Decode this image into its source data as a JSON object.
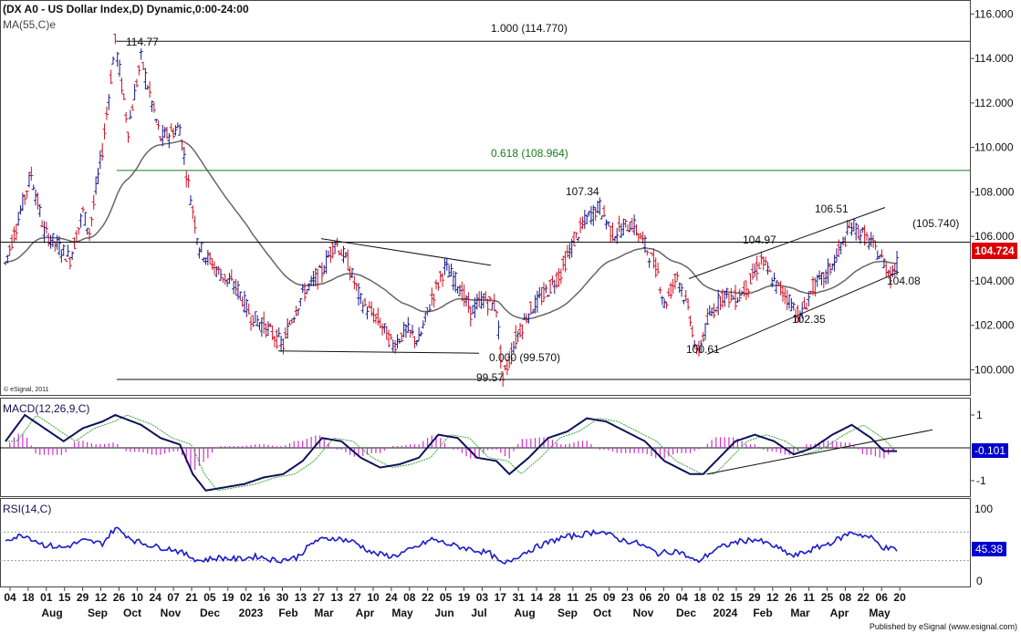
{
  "header": {
    "title": "(DX A0 - US Dollar Index,D) Dynamic,0:00-24:00",
    "ma_label": "MA(55,C)e",
    "copyright": "© eSignal, 2011",
    "published": "Published by eSignal (www.esignal.com)"
  },
  "colors": {
    "bullish_bar": "#1a1a8c",
    "bearish_bar": "#cc1122",
    "ma_line": "#666666",
    "fib_618_line": "#1a7a1a",
    "macd_line": "#10105a",
    "macd_signal": "#33aa33",
    "macd_histogram": "#cc33cc",
    "rsi_line": "#1a1acc",
    "price_box": "#dd0000",
    "indicator_box": "#0000cc"
  },
  "chart_data": [
    {
      "type": "line",
      "panel": "price",
      "y_ticks": [
        "100.000",
        "102.000",
        "104.000",
        "106.000",
        "108.000",
        "110.000",
        "112.000",
        "114.000",
        "116.000"
      ],
      "ylim": [
        99.2,
        116.3
      ],
      "x_ticks": [
        "04",
        "18",
        "01",
        "15",
        "29",
        "12",
        "26",
        "10",
        "24",
        "07",
        "21",
        "05",
        "19",
        "02",
        "16",
        "30",
        "13",
        "27",
        "13",
        "27",
        "10",
        "24",
        "08",
        "22",
        "05",
        "19",
        "03",
        "17",
        "31",
        "14",
        "28",
        "11",
        "25",
        "09",
        "23",
        "06",
        "20",
        "04",
        "18",
        "02",
        "15",
        "29",
        "12",
        "26",
        "11",
        "25",
        "08",
        "22",
        "06",
        "20"
      ],
      "x_month_labels": [
        "Aug",
        "Sep",
        "Oct",
        "Nov",
        "Dec",
        "2023",
        "Feb",
        "Mar",
        "Apr",
        "May",
        "Jun",
        "Jul",
        "Aug",
        "Sep",
        "Oct",
        "Nov",
        "Dec",
        "2024",
        "Feb",
        "Mar",
        "Apr",
        "May"
      ],
      "price_path": [
        [
          0,
          104.8
        ],
        [
          4,
          108.8
        ],
        [
          6,
          106.2
        ],
        [
          10,
          105.0
        ],
        [
          12,
          107.1
        ],
        [
          13,
          106.2
        ],
        [
          15,
          109.9
        ],
        [
          17,
          114.77
        ],
        [
          19,
          110.8
        ],
        [
          21,
          114.0
        ],
        [
          24,
          110.4
        ],
        [
          27,
          110.9
        ],
        [
          28,
          108.9
        ],
        [
          30,
          105.5
        ],
        [
          33,
          104.4
        ],
        [
          36,
          103.6
        ],
        [
          38,
          102.4
        ],
        [
          40,
          102.0
        ],
        [
          43,
          101.1
        ],
        [
          44,
          102.1
        ],
        [
          46,
          103.4
        ],
        [
          49,
          104.4
        ],
        [
          51,
          105.8
        ],
        [
          53,
          104.8
        ],
        [
          55,
          103.1
        ],
        [
          58,
          102.1
        ],
        [
          60,
          101.1
        ],
        [
          62,
          101.8
        ],
        [
          64,
          101.3
        ],
        [
          66,
          103.2
        ],
        [
          68,
          104.6
        ],
        [
          70,
          103.9
        ],
        [
          72,
          102.6
        ],
        [
          74,
          103.2
        ],
        [
          76,
          102.8
        ],
        [
          77,
          99.57
        ],
        [
          79,
          101.4
        ],
        [
          81,
          102.6
        ],
        [
          84,
          103.6
        ],
        [
          86,
          104.4
        ],
        [
          88,
          105.8
        ],
        [
          90,
          106.8
        ],
        [
          92,
          107.34
        ],
        [
          94,
          106.1
        ],
        [
          97,
          106.6
        ],
        [
          99,
          105.6
        ],
        [
          101,
          104.4
        ],
        [
          102,
          102.9
        ],
        [
          104,
          104.3
        ],
        [
          106,
          102.4
        ],
        [
          107,
          100.61
        ],
        [
          109,
          102.4
        ],
        [
          111,
          103.4
        ],
        [
          113,
          103.2
        ],
        [
          115,
          103.8
        ],
        [
          117,
          104.97
        ],
        [
          119,
          103.9
        ],
        [
          121,
          103.3
        ],
        [
          123,
          102.35
        ],
        [
          125,
          103.7
        ],
        [
          127,
          104.2
        ],
        [
          129,
          105.3
        ],
        [
          131,
          106.51
        ],
        [
          133,
          106.0
        ],
        [
          135,
          105.3
        ],
        [
          137,
          104.3
        ],
        [
          138,
          104.724
        ]
      ],
      "labels": [
        "114.77",
        "107.34",
        "104.97",
        "106.51",
        "99.57",
        "100.61",
        "102.35",
        "104.08"
      ],
      "fib_levels": [
        "1.000 (114.770)",
        "0.618 (108.964)",
        "0.000 (99.570)"
      ],
      "resistance_label": "(105.740)",
      "last_value": "104.724"
    },
    {
      "type": "line",
      "panel": "macd",
      "title": "MACD(12,26,9,C)",
      "y_ticks": [
        "1",
        "-1"
      ],
      "ylim": [
        -1.5,
        1.5
      ],
      "last_value": "-0.101",
      "macd_path": [
        [
          0,
          0.2
        ],
        [
          3,
          1.0
        ],
        [
          6,
          0.6
        ],
        [
          9,
          0.2
        ],
        [
          12,
          0.6
        ],
        [
          15,
          0.8
        ],
        [
          17,
          1.0
        ],
        [
          21,
          0.7
        ],
        [
          24,
          0.3
        ],
        [
          27,
          0.1
        ],
        [
          29,
          -0.8
        ],
        [
          31,
          -1.3
        ],
        [
          34,
          -1.2
        ],
        [
          37,
          -1.1
        ],
        [
          40,
          -0.9
        ],
        [
          43,
          -0.8
        ],
        [
          46,
          -0.4
        ],
        [
          49,
          0.3
        ],
        [
          52,
          0.2
        ],
        [
          55,
          -0.3
        ],
        [
          58,
          -0.6
        ],
        [
          61,
          -0.5
        ],
        [
          64,
          -0.3
        ],
        [
          67,
          0.4
        ],
        [
          70,
          0.3
        ],
        [
          73,
          -0.3
        ],
        [
          76,
          -0.4
        ],
        [
          78,
          -0.8
        ],
        [
          81,
          -0.3
        ],
        [
          84,
          0.3
        ],
        [
          87,
          0.5
        ],
        [
          90,
          0.9
        ],
        [
          93,
          0.8
        ],
        [
          96,
          0.5
        ],
        [
          99,
          0.2
        ],
        [
          102,
          -0.4
        ],
        [
          104,
          -0.6
        ],
        [
          106,
          -0.8
        ],
        [
          108,
          -0.8
        ],
        [
          110,
          -0.4
        ],
        [
          113,
          0.2
        ],
        [
          116,
          0.4
        ],
        [
          119,
          0.2
        ],
        [
          122,
          -0.2
        ],
        [
          125,
          0.0
        ],
        [
          128,
          0.4
        ],
        [
          131,
          0.7
        ],
        [
          134,
          0.3
        ],
        [
          136,
          -0.1
        ],
        [
          138,
          -0.101
        ]
      ]
    },
    {
      "type": "line",
      "panel": "rsi",
      "title": "RSI(14,C)",
      "y_ticks": [
        "100",
        "0"
      ],
      "ylim": [
        0,
        100
      ],
      "last_value": "45.38",
      "rsi_path": [
        [
          0,
          60
        ],
        [
          3,
          66
        ],
        [
          6,
          52
        ],
        [
          9,
          48
        ],
        [
          12,
          58
        ],
        [
          15,
          54
        ],
        [
          17,
          76
        ],
        [
          20,
          58
        ],
        [
          23,
          50
        ],
        [
          26,
          46
        ],
        [
          28,
          38
        ],
        [
          30,
          30
        ],
        [
          33,
          34
        ],
        [
          36,
          32
        ],
        [
          39,
          36
        ],
        [
          42,
          30
        ],
        [
          45,
          34
        ],
        [
          48,
          58
        ],
        [
          51,
          62
        ],
        [
          54,
          56
        ],
        [
          57,
          40
        ],
        [
          60,
          36
        ],
        [
          63,
          46
        ],
        [
          66,
          60
        ],
        [
          69,
          52
        ],
        [
          72,
          46
        ],
        [
          75,
          40
        ],
        [
          77,
          24
        ],
        [
          80,
          40
        ],
        [
          83,
          52
        ],
        [
          86,
          62
        ],
        [
          89,
          66
        ],
        [
          92,
          72
        ],
        [
          95,
          60
        ],
        [
          98,
          54
        ],
        [
          101,
          40
        ],
        [
          104,
          44
        ],
        [
          107,
          28
        ],
        [
          110,
          46
        ],
        [
          113,
          56
        ],
        [
          116,
          60
        ],
        [
          119,
          50
        ],
        [
          122,
          36
        ],
        [
          125,
          46
        ],
        [
          128,
          56
        ],
        [
          131,
          70
        ],
        [
          134,
          62
        ],
        [
          136,
          48
        ],
        [
          138,
          45.38
        ]
      ]
    }
  ]
}
